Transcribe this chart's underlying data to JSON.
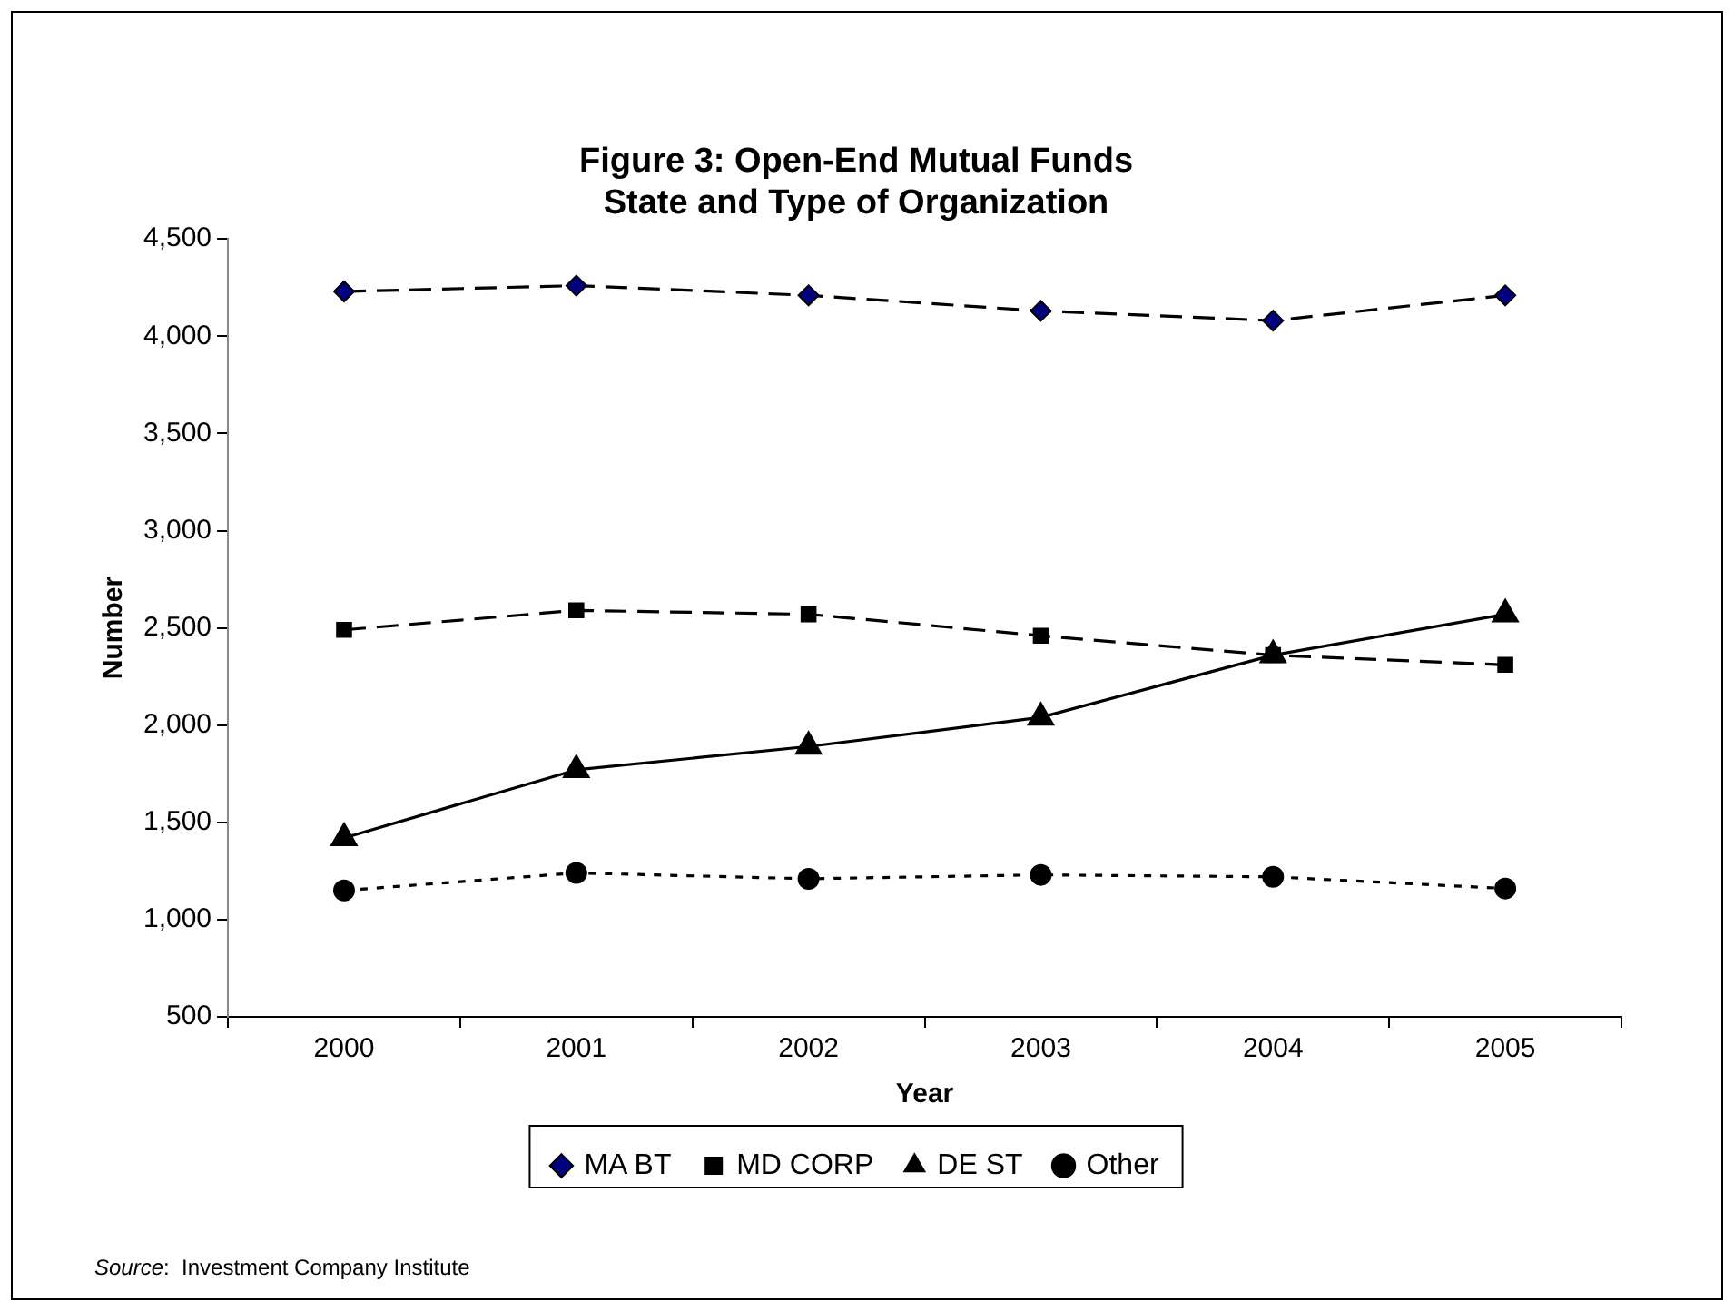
{
  "chart_data": {
    "type": "line",
    "title": "Figure 3: Open-End Mutual Funds\nState and Type of Organization",
    "xlabel": "Year",
    "ylabel": "Number",
    "categories": [
      "2000",
      "2001",
      "2002",
      "2003",
      "2004",
      "2005"
    ],
    "series": [
      {
        "name": "MA BT",
        "color": "#000080",
        "marker": "diamond",
        "line_style": "dashed",
        "values": [
          4230,
          4260,
          4210,
          4130,
          4080,
          4210
        ]
      },
      {
        "name": "MD CORP",
        "color": "#000000",
        "marker": "square",
        "line_style": "dashed",
        "values": [
          2490,
          2590,
          2570,
          2460,
          2360,
          2310
        ]
      },
      {
        "name": "DE ST",
        "color": "#000000",
        "marker": "triangle",
        "line_style": "solid",
        "values": [
          1420,
          1770,
          1890,
          2040,
          2360,
          2570
        ]
      },
      {
        "name": "Other",
        "color": "#000000",
        "marker": "circle",
        "line_style": "dotted",
        "values": [
          1150,
          1240,
          1210,
          1230,
          1220,
          1160
        ]
      }
    ],
    "ylim": [
      500,
      4500
    ],
    "yticks": [
      500,
      {
        "value": 1000,
        "label": "1,000"
      },
      {
        "value": 1500,
        "label": "1,500"
      },
      {
        "value": 2000,
        "label": "2,000"
      },
      {
        "value": 2500,
        "label": "2,500"
      },
      {
        "value": 3000,
        "label": "3,000"
      },
      {
        "value": 3500,
        "label": "3,500"
      },
      {
        "value": 4000,
        "label": "4,000"
      },
      {
        "value": 4500,
        "label": "4,500"
      }
    ],
    "grid": false,
    "legend": "bottom",
    "annotations": [
      "Source:  Investment Company Institute"
    ]
  }
}
